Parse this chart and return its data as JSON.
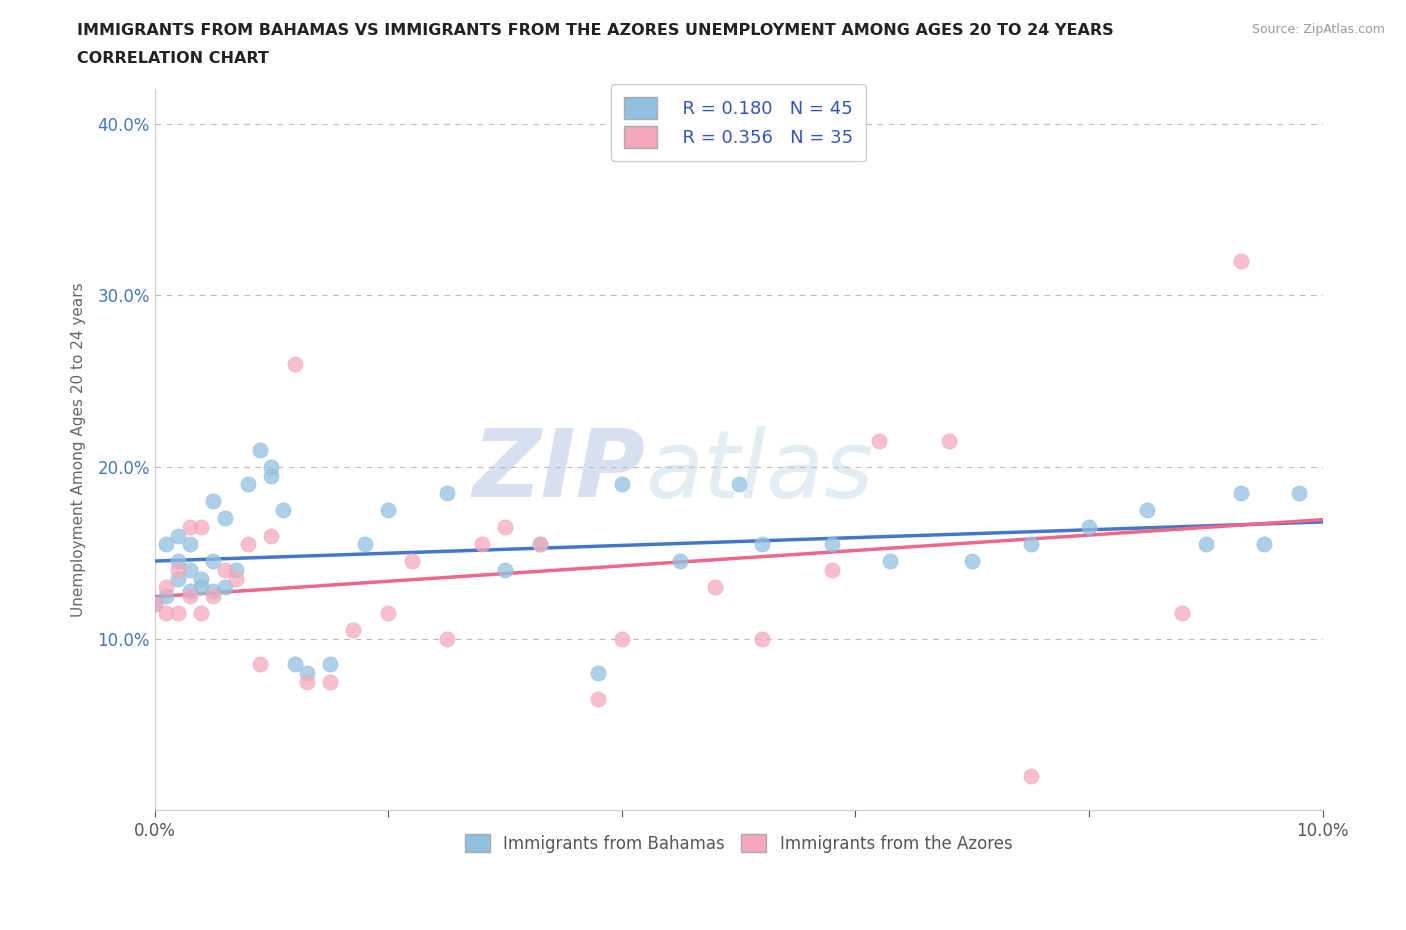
{
  "title_line1": "IMMIGRANTS FROM BAHAMAS VS IMMIGRANTS FROM THE AZORES UNEMPLOYMENT AMONG AGES 20 TO 24 YEARS",
  "title_line2": "CORRELATION CHART",
  "source_text": "Source: ZipAtlas.com",
  "ylabel": "Unemployment Among Ages 20 to 24 years",
  "xlim": [
    0.0,
    0.1
  ],
  "ylim": [
    0.0,
    0.42
  ],
  "watermark_zip": "ZIP",
  "watermark_atlas": "atlas",
  "legend_r1": "R = 0.180",
  "legend_n1": "N = 45",
  "legend_r2": "R = 0.356",
  "legend_n2": "N = 35",
  "color_blue": "#92C0E0",
  "color_pink": "#F5A8BC",
  "color_blue_line": "#4477CC",
  "color_pink_line": "#EE6688",
  "color_legend_text": "#3355BB",
  "grid_color": "#BBBBBB",
  "bahamas_x": [
    0.0,
    0.001,
    0.001,
    0.002,
    0.002,
    0.002,
    0.003,
    0.003,
    0.003,
    0.004,
    0.004,
    0.005,
    0.005,
    0.005,
    0.006,
    0.006,
    0.007,
    0.008,
    0.009,
    0.01,
    0.01,
    0.011,
    0.012,
    0.013,
    0.015,
    0.018,
    0.02,
    0.025,
    0.03,
    0.033,
    0.038,
    0.04,
    0.045,
    0.05,
    0.052,
    0.058,
    0.063,
    0.07,
    0.075,
    0.08,
    0.085,
    0.09,
    0.093,
    0.095,
    0.098
  ],
  "bahamas_y": [
    0.12,
    0.125,
    0.155,
    0.135,
    0.145,
    0.16,
    0.128,
    0.14,
    0.155,
    0.13,
    0.135,
    0.128,
    0.145,
    0.18,
    0.13,
    0.17,
    0.14,
    0.19,
    0.21,
    0.195,
    0.2,
    0.175,
    0.085,
    0.08,
    0.085,
    0.155,
    0.175,
    0.185,
    0.14,
    0.155,
    0.08,
    0.19,
    0.145,
    0.19,
    0.155,
    0.155,
    0.145,
    0.145,
    0.155,
    0.165,
    0.175,
    0.155,
    0.185,
    0.155,
    0.185
  ],
  "azores_x": [
    0.0,
    0.001,
    0.001,
    0.002,
    0.002,
    0.003,
    0.003,
    0.004,
    0.004,
    0.005,
    0.006,
    0.007,
    0.008,
    0.009,
    0.01,
    0.012,
    0.013,
    0.015,
    0.017,
    0.02,
    0.022,
    0.025,
    0.028,
    0.03,
    0.033,
    0.038,
    0.04,
    0.048,
    0.052,
    0.058,
    0.062,
    0.068,
    0.075,
    0.088,
    0.093
  ],
  "azores_y": [
    0.12,
    0.115,
    0.13,
    0.115,
    0.14,
    0.125,
    0.165,
    0.115,
    0.165,
    0.125,
    0.14,
    0.135,
    0.155,
    0.085,
    0.16,
    0.26,
    0.075,
    0.075,
    0.105,
    0.115,
    0.145,
    0.1,
    0.155,
    0.165,
    0.155,
    0.065,
    0.1,
    0.13,
    0.1,
    0.14,
    0.215,
    0.215,
    0.02,
    0.115,
    0.32
  ]
}
